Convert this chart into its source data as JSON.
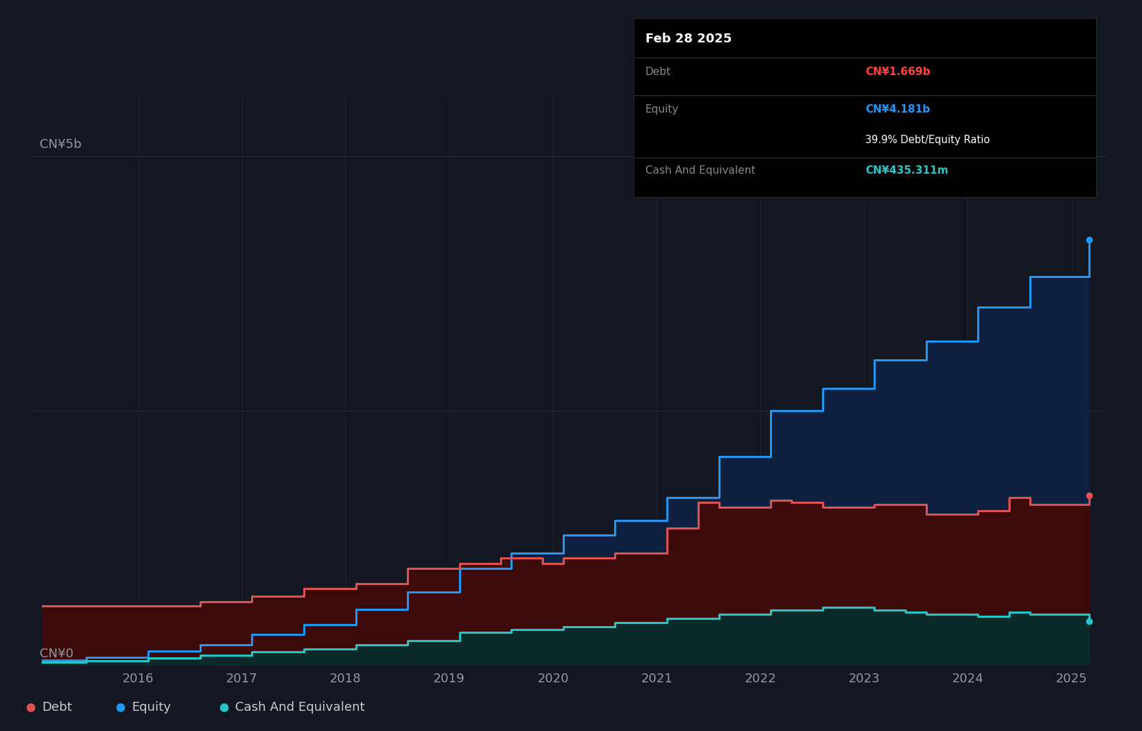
{
  "bg_color": "#131722",
  "plot_bg_color": "#131722",
  "grid_color": "#252a36",
  "y_label_5b": "CN¥5b",
  "y_label_0": "CN¥0",
  "debt_color": "#e05252",
  "equity_color": "#2196f3",
  "cash_color": "#26c6c6",
  "legend_debt": "Debt",
  "legend_equity": "Equity",
  "legend_cash": "Cash And Equivalent",
  "tooltip_bg": "#000000",
  "tooltip_title": "Feb 28 2025",
  "tooltip_debt_label": "Debt",
  "tooltip_debt_value": "CN¥1.669b",
  "tooltip_equity_label": "Equity",
  "tooltip_equity_value": "CN¥4.181b",
  "tooltip_ratio": "39.9% Debt/Equity Ratio",
  "tooltip_cash_label": "Cash And Equivalent",
  "tooltip_cash_value": "CN¥435.311m",
  "debt_color_value": "#ff4444",
  "equity_color_value": "#40b8f0",
  "cash_color_value": "#00e5cc",
  "equity_x": [
    2015.08,
    2015.5,
    2016.1,
    2016.6,
    2017.1,
    2017.6,
    2018.1,
    2018.6,
    2019.1,
    2019.6,
    2020.1,
    2020.6,
    2021.1,
    2021.6,
    2022.1,
    2022.6,
    2023.1,
    2023.6,
    2024.1,
    2024.6,
    2025.17
  ],
  "equity_y": [
    0.05,
    0.08,
    0.14,
    0.2,
    0.3,
    0.4,
    0.55,
    0.72,
    0.95,
    1.1,
    1.28,
    1.42,
    1.65,
    2.05,
    2.5,
    2.72,
    3.0,
    3.18,
    3.52,
    3.82,
    4.181
  ],
  "debt_x": [
    2015.08,
    2015.5,
    2016.1,
    2016.6,
    2017.1,
    2017.6,
    2018.1,
    2018.6,
    2019.1,
    2019.5,
    2019.9,
    2020.1,
    2020.6,
    2021.1,
    2021.4,
    2021.6,
    2022.1,
    2022.3,
    2022.6,
    2023.1,
    2023.6,
    2024.1,
    2024.4,
    2024.6,
    2025.17
  ],
  "debt_y": [
    0.58,
    0.58,
    0.58,
    0.62,
    0.68,
    0.75,
    0.8,
    0.95,
    1.0,
    1.05,
    1.0,
    1.05,
    1.1,
    1.35,
    1.6,
    1.55,
    1.62,
    1.6,
    1.55,
    1.58,
    1.48,
    1.52,
    1.65,
    1.58,
    1.669
  ],
  "cash_x": [
    2015.08,
    2015.5,
    2016.1,
    2016.6,
    2017.1,
    2017.6,
    2018.1,
    2018.6,
    2019.1,
    2019.6,
    2020.1,
    2020.6,
    2021.1,
    2021.6,
    2022.1,
    2022.6,
    2023.1,
    2023.4,
    2023.6,
    2024.1,
    2024.4,
    2024.6,
    2025.17
  ],
  "cash_y": [
    0.03,
    0.04,
    0.07,
    0.1,
    0.13,
    0.16,
    0.2,
    0.24,
    0.32,
    0.35,
    0.38,
    0.42,
    0.46,
    0.5,
    0.54,
    0.57,
    0.54,
    0.52,
    0.5,
    0.48,
    0.52,
    0.5,
    0.435
  ],
  "xlim": [
    2015.0,
    2025.35
  ],
  "ylim": [
    0,
    5.6
  ],
  "y_5b_val": 5.0,
  "y_2_5b_val": 2.5,
  "xticks": [
    2016,
    2017,
    2018,
    2019,
    2020,
    2021,
    2022,
    2023,
    2024,
    2025
  ]
}
